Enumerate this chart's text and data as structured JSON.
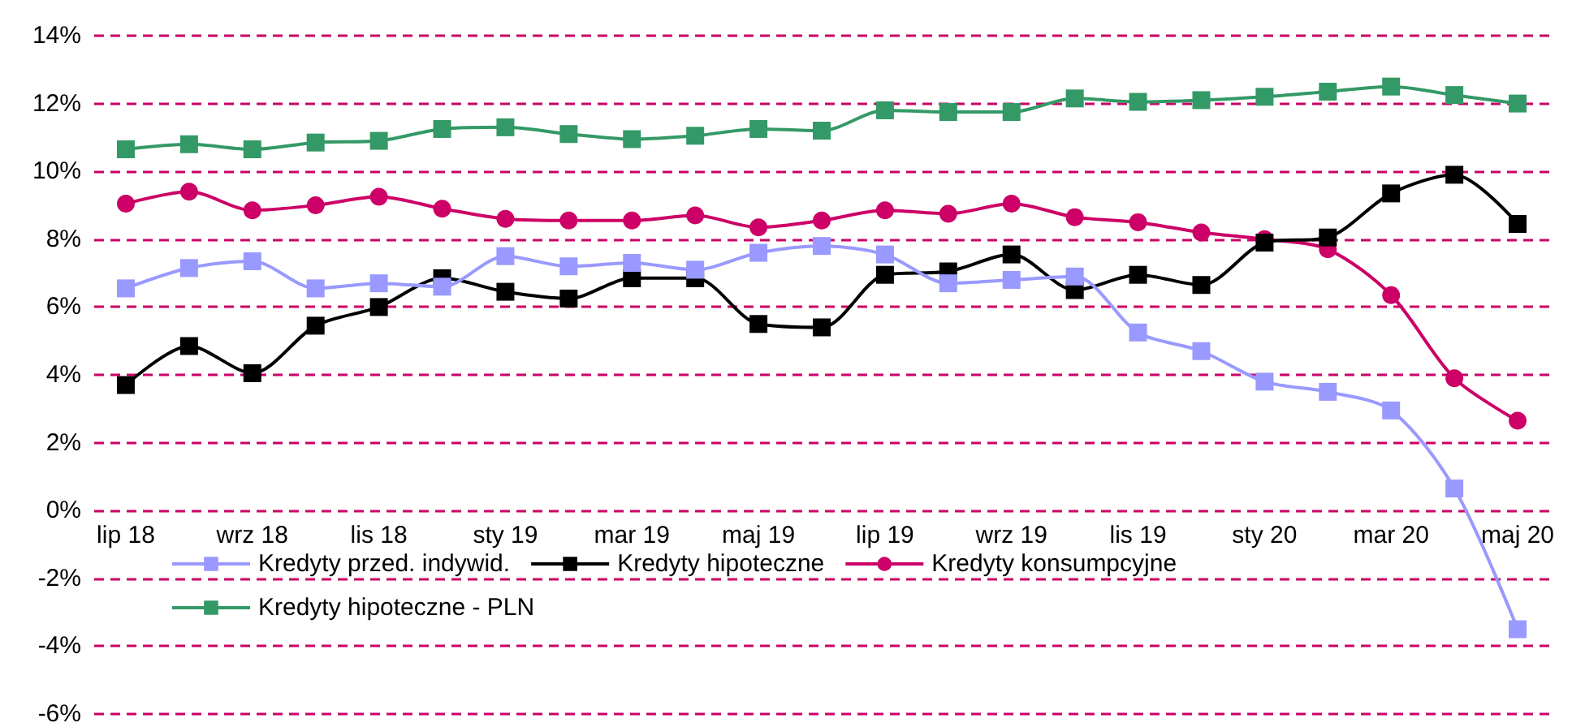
{
  "chart_data": {
    "type": "line",
    "categories": [
      "lip 18",
      null,
      "wrz 18",
      null,
      "lis 18",
      null,
      "sty 19",
      null,
      "mar 19",
      null,
      "maj 19",
      null,
      "lip 19",
      null,
      "wrz 19",
      null,
      "lis 19",
      null,
      "sty 20",
      null,
      "mar 20",
      null,
      "maj 20"
    ],
    "series": [
      {
        "name": "Kredyty przed. indywid.",
        "color": "#9999ff",
        "marker": "square",
        "values": [
          6.55,
          7.15,
          7.35,
          6.55,
          6.7,
          6.6,
          7.5,
          7.2,
          7.3,
          7.1,
          7.6,
          7.8,
          7.55,
          6.7,
          6.8,
          6.9,
          5.25,
          4.7,
          3.8,
          3.5,
          2.95,
          0.65,
          -3.5
        ]
      },
      {
        "name": "Kredyty hipoteczne",
        "color": "#000000",
        "marker": "square",
        "values": [
          3.7,
          4.85,
          4.05,
          5.45,
          6.0,
          6.85,
          6.45,
          6.25,
          6.85,
          6.85,
          5.5,
          5.4,
          6.95,
          7.05,
          7.55,
          6.5,
          6.95,
          6.65,
          7.9,
          8.05,
          9.35,
          9.9,
          8.45
        ]
      },
      {
        "name": "Kredyty konsumpcyjne",
        "color": "#cc0066",
        "marker": "circle",
        "values": [
          9.05,
          9.4,
          8.85,
          9.0,
          9.25,
          8.9,
          8.6,
          8.55,
          8.55,
          8.7,
          8.35,
          8.55,
          8.85,
          8.75,
          9.05,
          8.65,
          8.5,
          8.2,
          8.0,
          7.7,
          6.35,
          3.9,
          2.65
        ]
      },
      {
        "name": "Kredyty hipoteczne - PLN",
        "color": "#339966",
        "marker": "square",
        "values": [
          10.65,
          10.8,
          10.65,
          10.85,
          10.9,
          11.25,
          11.3,
          11.1,
          10.95,
          11.05,
          11.25,
          11.2,
          11.8,
          11.75,
          11.75,
          12.15,
          12.05,
          12.1,
          12.2,
          12.35,
          12.5,
          12.25,
          12.0
        ]
      }
    ],
    "ylim": [
      -6,
      14
    ],
    "yticks": [
      {
        "value": -6,
        "label": "-6%"
      },
      {
        "value": -4,
        "label": "-4%"
      },
      {
        "value": -2,
        "label": "-2%"
      },
      {
        "value": 0,
        "label": "0%"
      },
      {
        "value": 2,
        "label": "2%"
      },
      {
        "value": 4,
        "label": "4%"
      },
      {
        "value": 6,
        "label": "6%"
      },
      {
        "value": 8,
        "label": "8%"
      },
      {
        "value": 10,
        "label": "10%"
      },
      {
        "value": 12,
        "label": "12%"
      },
      {
        "value": 14,
        "label": "14%"
      }
    ],
    "grid": "y",
    "legend": "bottom"
  }
}
